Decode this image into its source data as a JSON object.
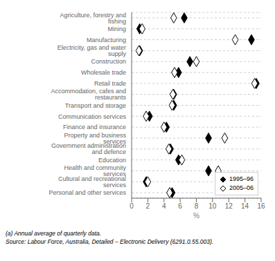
{
  "chart_data": {
    "type": "dot",
    "categories": [
      "Agriculture, forestry and fishing",
      "Mining",
      "Manufacturing",
      "Electricity, gas and water supply",
      "Construction",
      "Wholesale trade",
      "Retail trade",
      "Accommodation, cafes and restaurants",
      "Transport and storage",
      "Communication services",
      "Finance and insurance",
      "Property and business services",
      "Government administration and defence",
      "Education",
      "Health and community services",
      "Cultural and recreational services",
      "Personal and other services"
    ],
    "series": [
      {
        "name": "1995–96",
        "color": "#000000",
        "marker": "diamond",
        "values": [
          6.5,
          1.0,
          14.8,
          1.0,
          7.2,
          5.8,
          15.4,
          5.2,
          5.2,
          2.2,
          4.3,
          9.5,
          4.8,
          5.8,
          9.5,
          1.8,
          5.0
        ]
      },
      {
        "name": "2005–06",
        "color": "#000000",
        "marker": "open_diamond",
        "values": [
          5.2,
          1.3,
          12.8,
          0.9,
          8.0,
          5.3,
          15.2,
          5.1,
          5.0,
          1.8,
          4.0,
          11.5,
          4.6,
          6.2,
          10.7,
          2.0,
          4.7
        ]
      }
    ],
    "xlabel": "%",
    "xlim": [
      0,
      16
    ],
    "xticks": [
      0,
      2,
      4,
      6,
      8,
      10,
      12,
      14,
      16
    ],
    "grid": true,
    "legend": "lower right",
    "annotations": [
      "(a) Annual average of quarterly data.",
      "Source: Labour Force, Australia, Detailed – Electronic Delivery (6291.0.55.003)."
    ]
  }
}
